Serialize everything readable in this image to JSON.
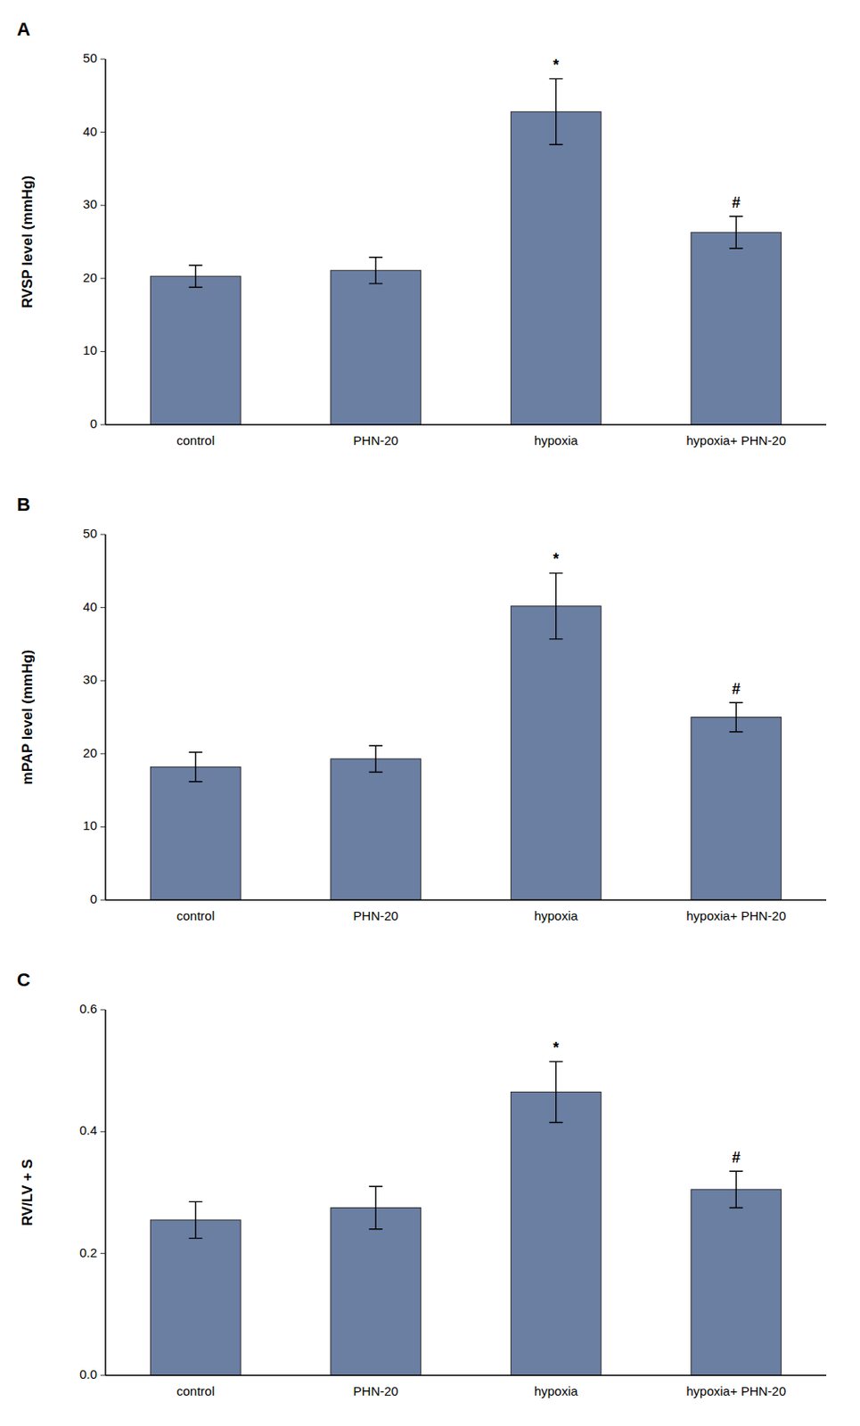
{
  "chart_data": [
    {
      "type": "bar",
      "title": "A",
      "ylabel": "RVSP level (mmHg)",
      "categories": [
        "control",
        "PHN-20",
        "hypoxia",
        "hypoxia+ PHN-20"
      ],
      "values": [
        20.3,
        21.1,
        42.8,
        26.3
      ],
      "errors": [
        1.5,
        1.8,
        4.5,
        2.2
      ],
      "annotations": [
        null,
        null,
        "*",
        "#"
      ],
      "color": "#6B7FA3",
      "ylim": [
        0,
        50
      ],
      "yticks": [
        0,
        10,
        20,
        30,
        40,
        50
      ],
      "grid": false
    },
    {
      "type": "bar",
      "title": "B",
      "ylabel": "mPAP level (mmHg)",
      "categories": [
        "control",
        "PHN-20",
        "hypoxia",
        "hypoxia+ PHN-20"
      ],
      "values": [
        18.2,
        19.3,
        40.2,
        25.0
      ],
      "errors": [
        2.0,
        1.8,
        4.5,
        2.0
      ],
      "annotations": [
        null,
        null,
        "*",
        "#"
      ],
      "color": "#6B7FA3",
      "ylim": [
        0,
        50
      ],
      "yticks": [
        0,
        10,
        20,
        30,
        40,
        50
      ],
      "grid": false
    },
    {
      "type": "bar",
      "title": "C",
      "ylabel": "RV/LV + S",
      "categories": [
        "control",
        "PHN-20",
        "hypoxia",
        "hypoxia+ PHN-20"
      ],
      "values": [
        0.255,
        0.275,
        0.465,
        0.305
      ],
      "errors": [
        0.03,
        0.035,
        0.05,
        0.03
      ],
      "annotations": [
        null,
        null,
        "*",
        "#"
      ],
      "color": "#6B7FA3",
      "ylim": [
        0,
        0.6
      ],
      "yticks": [
        {
          "value": 0,
          "label": "0.0"
        },
        0.2,
        0.4,
        0.6
      ],
      "grid": false
    }
  ]
}
